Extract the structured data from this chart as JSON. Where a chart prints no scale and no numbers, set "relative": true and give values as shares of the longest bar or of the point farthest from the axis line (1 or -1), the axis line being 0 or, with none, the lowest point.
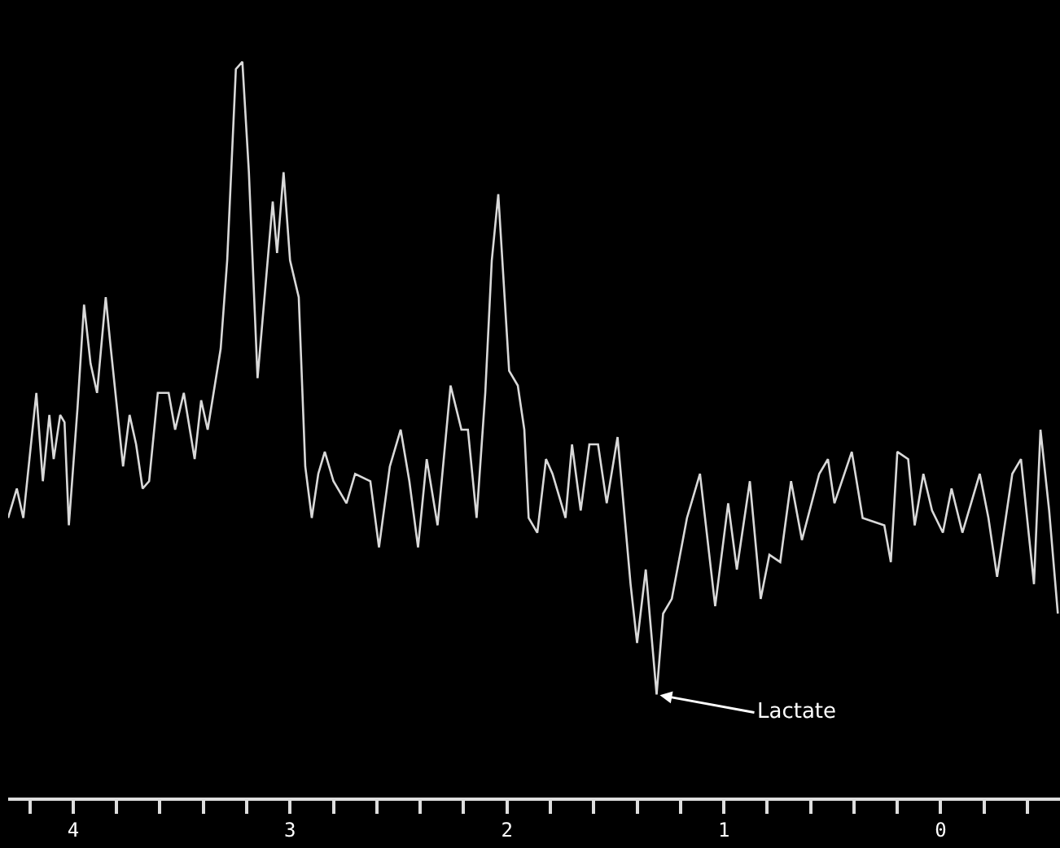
{
  "chart_data": {
    "type": "line",
    "relative": true,
    "tick_labels": "x",
    "color": "#d9d9d9",
    "xlim": [
      4.3,
      -0.55
    ],
    "xticks": [
      {
        "value": 4.2,
        "label": null
      },
      4,
      {
        "value": 3.8,
        "label": null
      },
      {
        "value": 3.6,
        "label": null
      },
      {
        "value": 3.4,
        "label": null
      },
      {
        "value": 3.2,
        "label": null
      },
      3,
      {
        "value": 2.8,
        "label": null
      },
      {
        "value": 2.6,
        "label": null
      },
      {
        "value": 2.4,
        "label": null
      },
      {
        "value": 2.2,
        "label": null
      },
      2,
      {
        "value": 1.8,
        "label": null
      },
      {
        "value": 1.6,
        "label": null
      },
      {
        "value": 1.4,
        "label": null
      },
      {
        "value": 1.2,
        "label": null
      },
      1,
      {
        "value": 0.8,
        "label": null
      },
      {
        "value": 0.6,
        "label": null
      },
      {
        "value": 0.4,
        "label": null
      },
      {
        "value": 0.2,
        "label": null
      },
      0,
      {
        "value": -0.2,
        "label": null
      },
      {
        "value": -0.4,
        "label": null
      }
    ],
    "x": [
      4.3,
      4.26,
      4.23,
      4.17,
      4.14,
      4.11,
      4.09,
      4.06,
      4.04,
      4.02,
      3.98,
      3.95,
      3.92,
      3.89,
      3.85,
      3.83,
      3.77,
      3.74,
      3.71,
      3.68,
      3.65,
      3.61,
      3.56,
      3.53,
      3.49,
      3.44,
      3.41,
      3.38,
      3.32,
      3.29,
      3.25,
      3.22,
      3.19,
      3.15,
      3.08,
      3.06,
      3.03,
      3.0,
      2.96,
      2.93,
      2.9,
      2.87,
      2.84,
      2.8,
      2.74,
      2.7,
      2.63,
      2.59,
      2.54,
      2.49,
      2.45,
      2.41,
      2.37,
      2.32,
      2.26,
      2.21,
      2.18,
      2.14,
      2.1,
      2.07,
      2.04,
      1.99,
      1.95,
      1.92,
      1.9,
      1.86,
      1.82,
      1.79,
      1.73,
      1.7,
      1.66,
      1.62,
      1.58,
      1.54,
      1.49,
      1.43,
      1.4,
      1.36,
      1.31,
      1.28,
      1.24,
      1.17,
      1.11,
      1.04,
      0.98,
      0.94,
      0.88,
      0.83,
      0.79,
      0.74,
      0.69,
      0.64,
      0.56,
      0.52,
      0.49,
      0.41,
      0.36,
      0.26,
      0.23,
      0.2,
      0.15,
      0.12,
      0.08,
      0.04,
      -0.01,
      -0.05,
      -0.1,
      -0.18,
      -0.22,
      -0.26,
      -0.33,
      -0.37,
      -0.43,
      -0.46,
      -0.5,
      -0.54
    ],
    "values": [
      0.38,
      0.42,
      0.38,
      0.55,
      0.43,
      0.52,
      0.46,
      0.52,
      0.51,
      0.37,
      0.53,
      0.67,
      0.59,
      0.55,
      0.68,
      0.62,
      0.45,
      0.52,
      0.48,
      0.42,
      0.43,
      0.55,
      0.55,
      0.5,
      0.55,
      0.46,
      0.54,
      0.5,
      0.61,
      0.73,
      0.99,
      1.0,
      0.85,
      0.57,
      0.81,
      0.74,
      0.85,
      0.73,
      0.68,
      0.45,
      0.38,
      0.44,
      0.47,
      0.43,
      0.4,
      0.44,
      0.43,
      0.34,
      0.45,
      0.5,
      0.43,
      0.34,
      0.46,
      0.37,
      0.56,
      0.5,
      0.5,
      0.38,
      0.55,
      0.73,
      0.82,
      0.58,
      0.56,
      0.5,
      0.38,
      0.36,
      0.46,
      0.44,
      0.38,
      0.48,
      0.39,
      0.48,
      0.48,
      0.4,
      0.49,
      0.29,
      0.21,
      0.31,
      0.14,
      0.25,
      0.27,
      0.38,
      0.44,
      0.26,
      0.4,
      0.31,
      0.43,
      0.27,
      0.33,
      0.32,
      0.43,
      0.35,
      0.44,
      0.46,
      0.4,
      0.47,
      0.38,
      0.37,
      0.32,
      0.47,
      0.46,
      0.37,
      0.44,
      0.39,
      0.36,
      0.42,
      0.36,
      0.44,
      0.38,
      0.3,
      0.44,
      0.46,
      0.29,
      0.5,
      0.39,
      0.25
    ],
    "annotations": [
      {
        "text": "Lactate",
        "x": 1.31,
        "y": 0.14
      }
    ]
  }
}
